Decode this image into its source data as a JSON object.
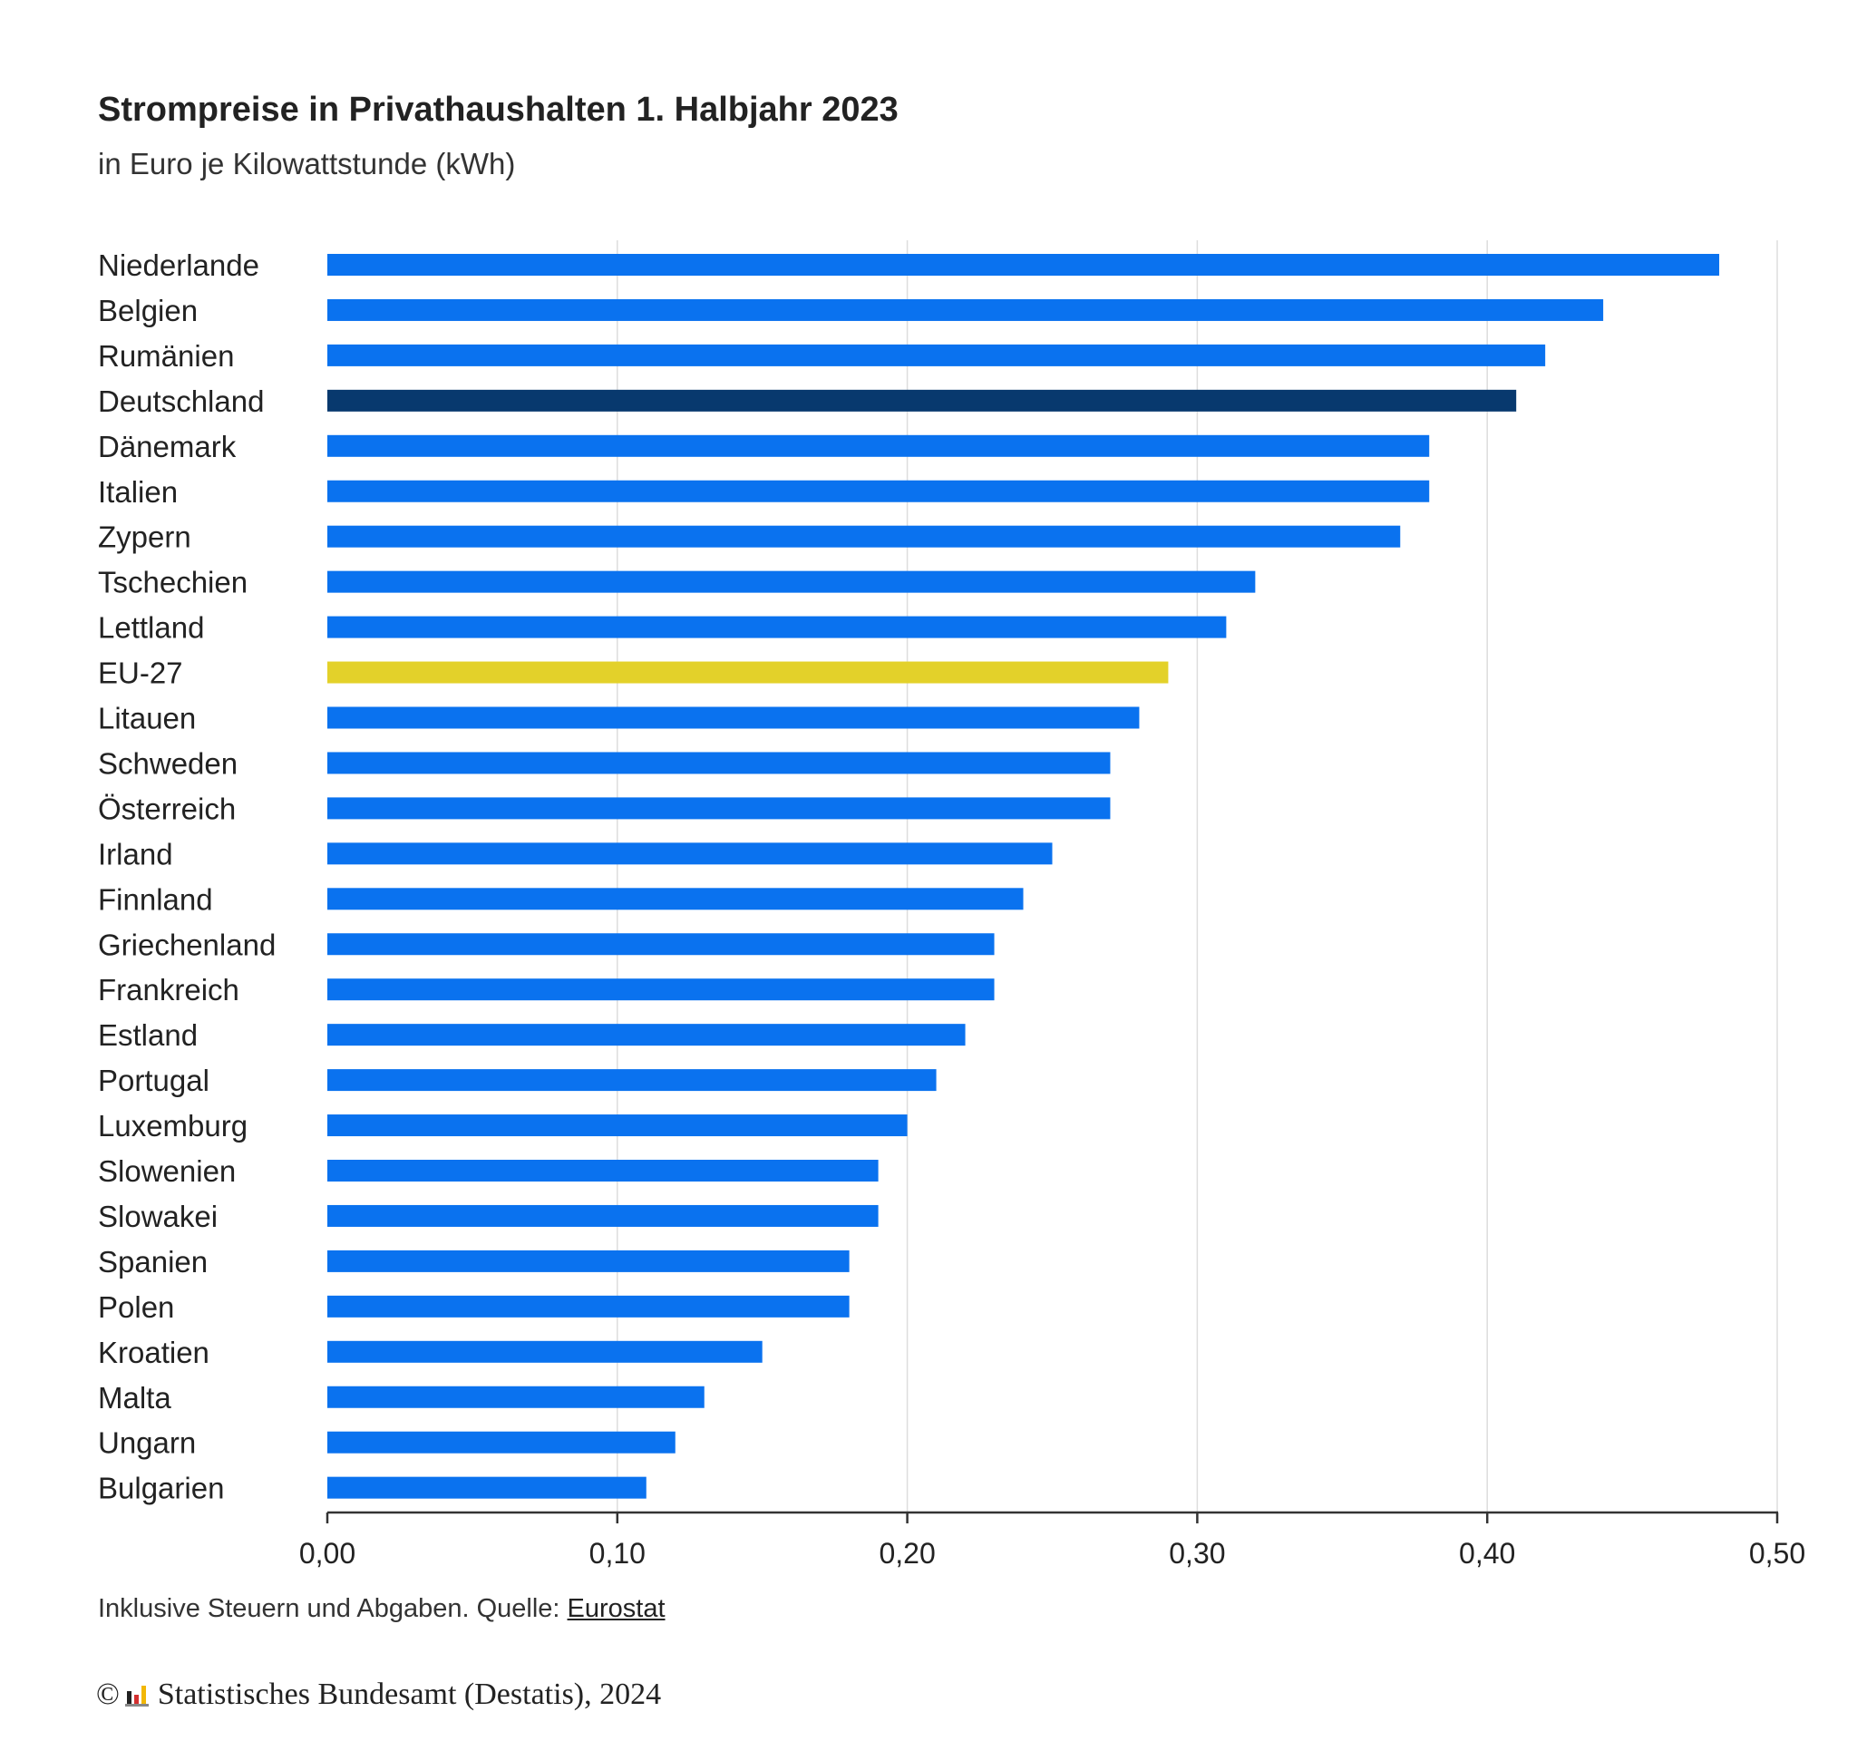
{
  "chart_data": {
    "type": "bar",
    "orientation": "horizontal",
    "title": "Strompreise in Privathaushalten 1. Halbjahr 2023",
    "subtitle": "in Euro je Kilowattstunde (kWh)",
    "categories": [
      "Niederlande",
      "Belgien",
      "Rumänien",
      "Deutschland",
      "Dänemark",
      "Italien",
      "Zypern",
      "Tschechien",
      "Lettland",
      "EU-27",
      "Litauen",
      "Schweden",
      "Österreich",
      "Irland",
      "Finnland",
      "Griechenland",
      "Frankreich",
      "Estland",
      "Portugal",
      "Luxemburg",
      "Slowenien",
      "Slowakei",
      "Spanien",
      "Polen",
      "Kroatien",
      "Malta",
      "Ungarn",
      "Bulgarien"
    ],
    "values": [
      0.48,
      0.44,
      0.42,
      0.41,
      0.38,
      0.38,
      0.37,
      0.32,
      0.31,
      0.29,
      0.28,
      0.27,
      0.27,
      0.25,
      0.24,
      0.23,
      0.23,
      0.22,
      0.21,
      0.2,
      0.19,
      0.19,
      0.18,
      0.18,
      0.15,
      0.13,
      0.12,
      0.11
    ],
    "highlight": {
      "Deutschland": "#08396e",
      "EU-27": "#e3d12a"
    },
    "default_color": "#0a72ef",
    "xlim": [
      0,
      0.5
    ],
    "xticks": [
      0,
      0.1,
      0.2,
      0.3,
      0.4,
      0.5
    ],
    "xtick_labels": [
      "0,00",
      "0,10",
      "0,20",
      "0,30",
      "0,40",
      "0,50"
    ],
    "grid": true
  },
  "footnote": {
    "text": "Inklusive Steuern und Abgaben. Quelle: ",
    "source": "Eurostat"
  },
  "copyright": {
    "symbol": "©",
    "text": "Statistisches Bundesamt (Destatis), 2024"
  }
}
